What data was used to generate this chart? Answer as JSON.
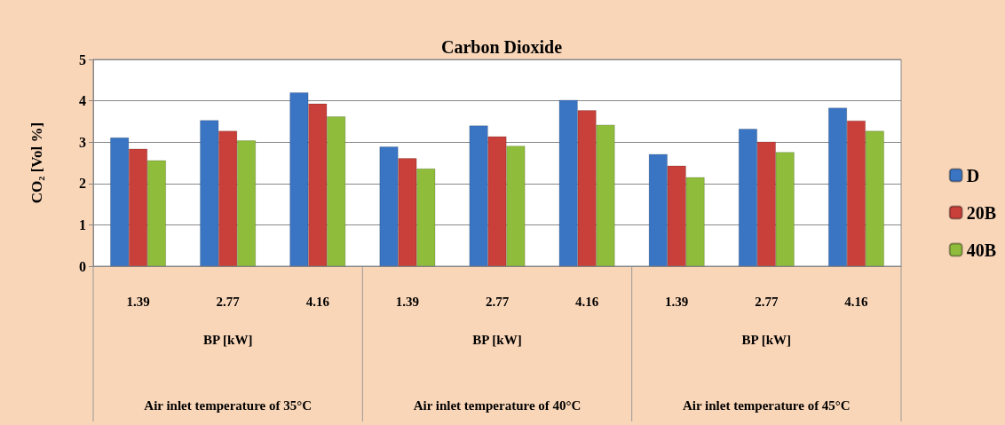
{
  "chart_data": {
    "type": "bar",
    "title": "Carbon Dioxide",
    "ylabel": "CO₂ [Vol %]",
    "categories": [
      "1.39",
      "2.77",
      "4.16",
      "1.39",
      "2.77",
      "4.16",
      "1.39",
      "2.77",
      "4.16"
    ],
    "series": [
      {
        "name": "D",
        "color": "#3a75c4",
        "values": [
          3.11,
          3.53,
          4.2,
          2.89,
          3.4,
          4.02,
          2.71,
          3.32,
          3.83
        ]
      },
      {
        "name": "20B",
        "color": "#c9403a",
        "values": [
          2.84,
          3.27,
          3.93,
          2.61,
          3.14,
          3.77,
          2.43,
          3.01,
          3.52
        ]
      },
      {
        "name": "40B",
        "color": "#8fbc3a",
        "values": [
          2.56,
          3.04,
          3.62,
          2.36,
          2.91,
          3.42,
          2.15,
          2.76,
          3.27
        ]
      }
    ],
    "annotations": [
      "BP [kW]",
      "BP [kW]",
      "BP [kW]",
      "Air inlet temperature of 35°C",
      "Air inlet temperature of 40°C",
      "Air inlet temperature of 45°C"
    ],
    "ylim": [
      0,
      5
    ],
    "yticks": [
      0,
      1,
      2,
      3,
      4,
      5
    ],
    "grid": "y",
    "legend": "right"
  }
}
